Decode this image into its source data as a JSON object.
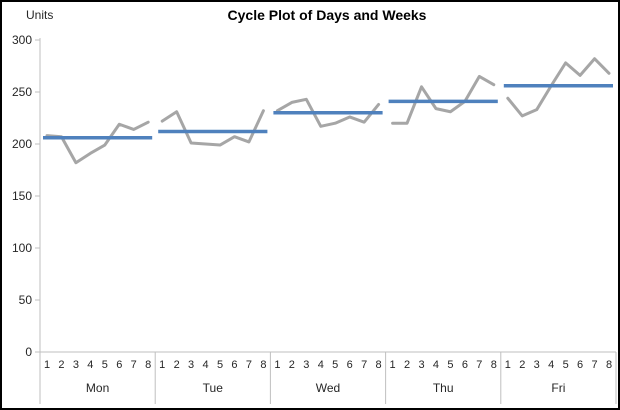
{
  "header": {
    "title": "Cycle Plot of Days and Weeks",
    "y_axis_unit_label": "Units"
  },
  "chart_data": {
    "type": "line",
    "subtype": "cycle-plot",
    "title": "Cycle Plot of Days and Weeks",
    "ylabel": "Units",
    "xlabel": "",
    "ylim": [
      0,
      300
    ],
    "ytick_step": 50,
    "yticks": [
      300,
      250,
      200,
      150,
      100,
      50,
      0
    ],
    "grid": false,
    "legend": false,
    "week_labels": [
      "1",
      "2",
      "3",
      "4",
      "5",
      "6",
      "7",
      "8"
    ],
    "panels": [
      {
        "day": "Mon",
        "values": [
          208,
          207,
          182,
          191,
          199,
          219,
          214,
          221
        ],
        "mean": 206
      },
      {
        "day": "Tue",
        "values": [
          222,
          231,
          201,
          200,
          199,
          207,
          202,
          232
        ],
        "mean": 212
      },
      {
        "day": "Wed",
        "values": [
          232,
          240,
          243,
          217,
          220,
          226,
          221,
          238
        ],
        "mean": 230
      },
      {
        "day": "Thu",
        "values": [
          220,
          220,
          255,
          234,
          231,
          241,
          265,
          257
        ],
        "mean": 241
      },
      {
        "day": "Fri",
        "values": [
          244,
          227,
          233,
          256,
          278,
          266,
          282,
          268
        ],
        "mean": 256
      }
    ],
    "series": [
      {
        "name": "weekly-values",
        "color": "#A6A6A6"
      },
      {
        "name": "day-mean",
        "color": "#4F81BD"
      }
    ],
    "colors": {
      "weekly_line": "#A6A6A6",
      "mean_line": "#4F81BD",
      "axis": "#BFBFBF",
      "text": "#262626",
      "title": "#000000",
      "background": "#FFFFFF",
      "border": "#000000"
    }
  }
}
